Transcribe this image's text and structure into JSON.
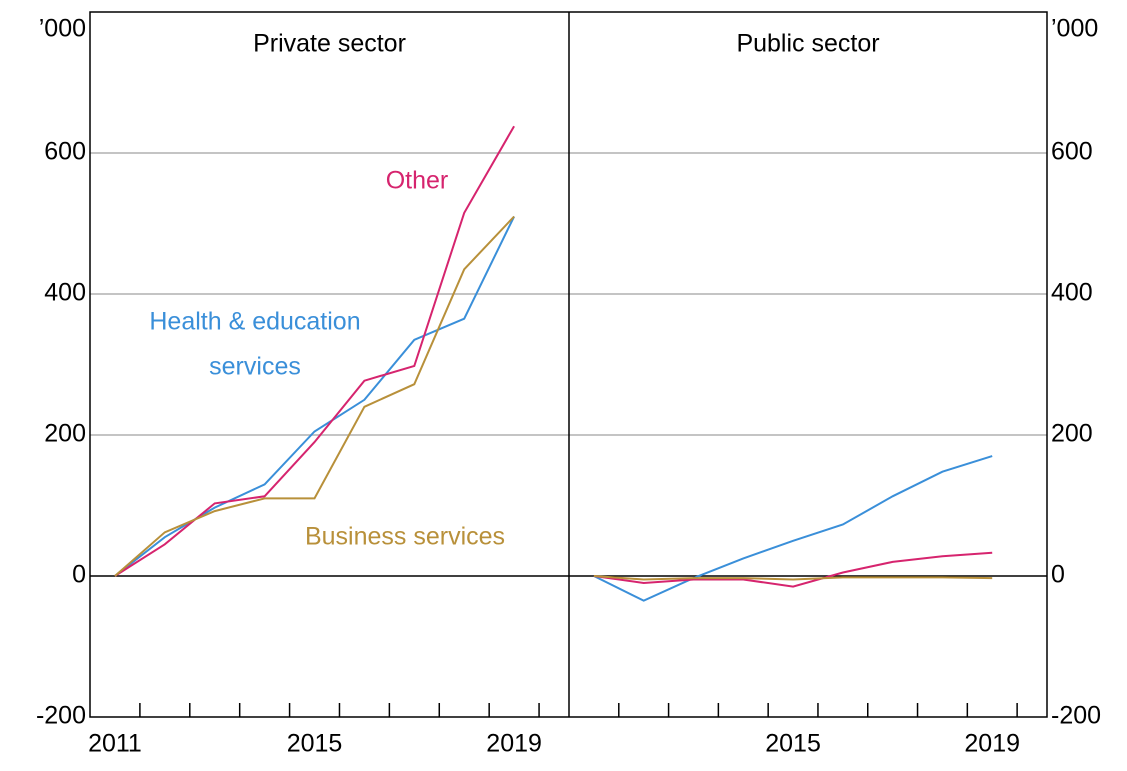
{
  "chart_data": [
    {
      "type": "line",
      "title": "Private sector",
      "y_unit": "’000",
      "x": [
        2011,
        2012,
        2013,
        2014,
        2015,
        2016,
        2017,
        2018,
        2019
      ],
      "series": [
        {
          "name": "Health & education services",
          "color": "#3a8fd9",
          "values": [
            0,
            55,
            97,
            130,
            205,
            250,
            335,
            365,
            510
          ]
        },
        {
          "name": "Other",
          "color": "#d6246e",
          "values": [
            0,
            45,
            103,
            113,
            190,
            277,
            298,
            515,
            638
          ]
        },
        {
          "name": "Business services",
          "color": "#b8903a",
          "values": [
            0,
            62,
            92,
            110,
            110,
            240,
            272,
            435,
            510
          ]
        }
      ],
      "annotations": [
        [
          "Health & education",
          "services"
        ],
        [
          "Other"
        ],
        [
          "Business services"
        ]
      ],
      "xlim": [
        2010.5,
        2020.1
      ],
      "xticks": [
        2011,
        2015,
        2019
      ],
      "xminor": [
        2011.5,
        2012.5,
        2013.5,
        2014.5,
        2015.5,
        2016.5,
        2017.5,
        2018.5,
        2019.5
      ],
      "ylim": [
        -200,
        800
      ],
      "yticks": [
        -200,
        0,
        200,
        400,
        600
      ],
      "grid": true
    },
    {
      "type": "line",
      "title": "Public sector",
      "y_unit": "’000",
      "x": [
        2011,
        2012,
        2013,
        2014,
        2015,
        2016,
        2017,
        2018,
        2019
      ],
      "series": [
        {
          "name": "Health & education services",
          "color": "#3a8fd9",
          "values": [
            0,
            -35,
            -3,
            25,
            50,
            73,
            113,
            148,
            170
          ]
        },
        {
          "name": "Other",
          "color": "#d6246e",
          "values": [
            0,
            -10,
            -5,
            -5,
            -15,
            5,
            20,
            28,
            33
          ]
        },
        {
          "name": "Business services",
          "color": "#b8903a",
          "values": [
            0,
            -5,
            -3,
            -3,
            -5,
            -2,
            -2,
            -2,
            -3
          ]
        }
      ],
      "xlim": [
        2010.5,
        2020.1
      ],
      "xticks": [
        2015,
        2019
      ],
      "xminor": [
        2011.5,
        2012.5,
        2013.5,
        2014.5,
        2015.5,
        2016.5,
        2017.5,
        2018.5,
        2019.5
      ],
      "ylim": [
        -200,
        800
      ],
      "yticks": [
        -200,
        0,
        200,
        400,
        600
      ],
      "grid": true
    }
  ]
}
